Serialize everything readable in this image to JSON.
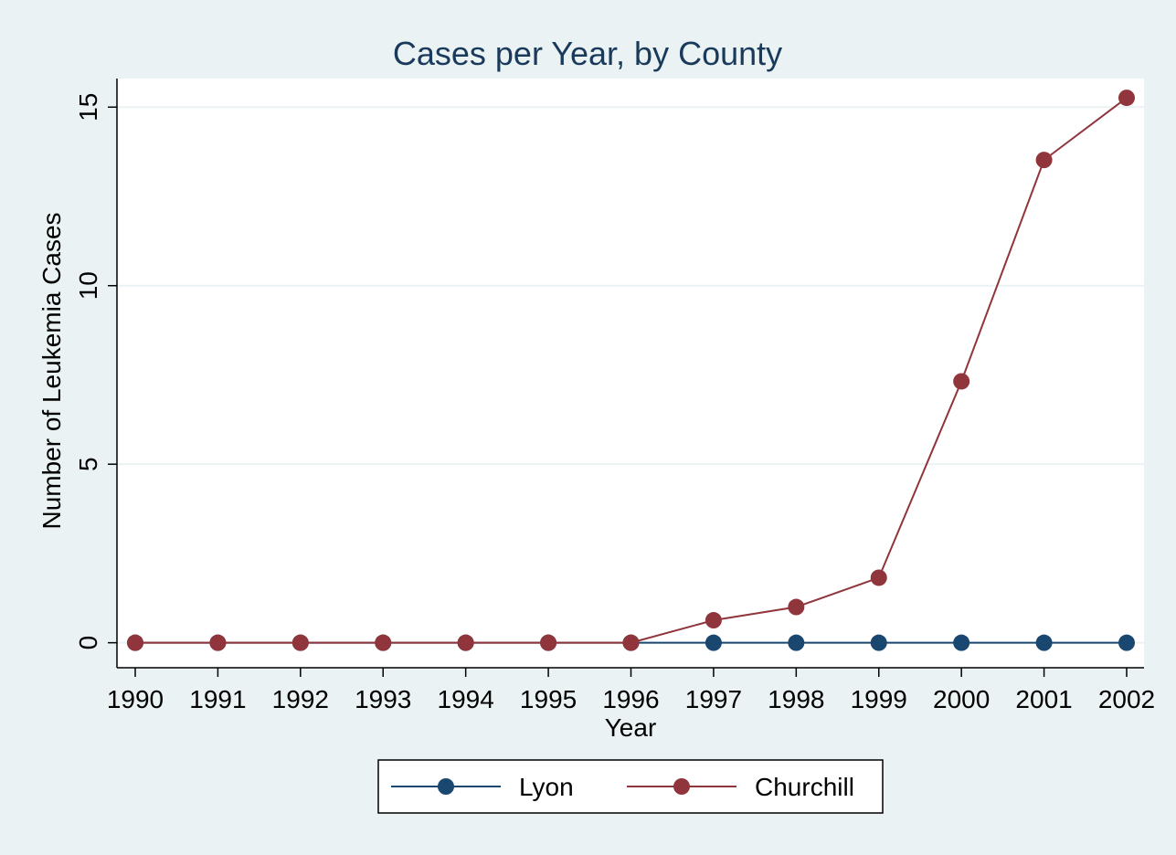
{
  "chart_data": {
    "type": "line",
    "title": "Cases per Year, by County",
    "xlabel": "Year",
    "ylabel": "Number of Leukemia Cases",
    "x": [
      1990,
      1991,
      1992,
      1993,
      1994,
      1995,
      1996,
      1997,
      1998,
      1999,
      2000,
      2001,
      2002
    ],
    "xticks": [
      "1990",
      "1991",
      "1992",
      "1993",
      "1994",
      "1995",
      "1996",
      "1997",
      "1998",
      "1999",
      "2000",
      "2001",
      "2002"
    ],
    "yticks": [
      0,
      5,
      10,
      15
    ],
    "ylim": [
      -0.7,
      15.8
    ],
    "grid": true,
    "legend_position": "bottom",
    "series": [
      {
        "name": "Lyon",
        "color": "#1a476f",
        "values": [
          0,
          0,
          0,
          0,
          0,
          0,
          0,
          0,
          0,
          0,
          0,
          0,
          0
        ]
      },
      {
        "name": "Churchill",
        "color": "#90353b",
        "values": [
          0,
          0,
          0,
          0,
          0,
          0,
          0,
          0.63,
          1,
          1.82,
          7.32,
          13.52,
          15.26
        ]
      }
    ]
  }
}
